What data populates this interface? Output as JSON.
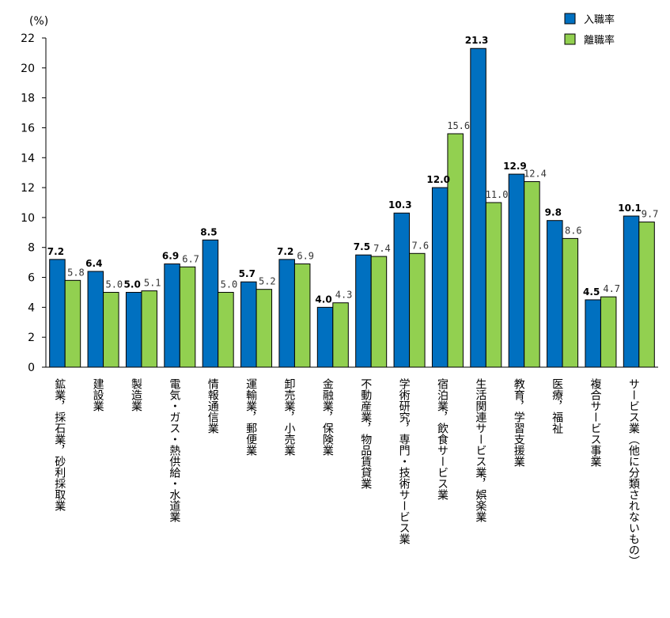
{
  "chart_data": {
    "type": "bar",
    "unit_label": "(%)",
    "ylim": [
      0,
      22
    ],
    "yticks": [
      0,
      2,
      4,
      6,
      8,
      10,
      12,
      14,
      16,
      18,
      20,
      22
    ],
    "legend_position": "top-right",
    "categories": [
      "鉱業，採石業，砂利採取業",
      "建設業",
      "製造業",
      "電気・ガス・熱供給・水道業",
      "情報通信業",
      "運輸業，郵便業",
      "卸売業，小売業",
      "金融業，保険業",
      "不動産業，物品賃貸業",
      "学術研究，専門・技術サービス業",
      "宿泊業，飲食サービス業",
      "生活関連サービス業，娯楽業",
      "教育，学習支援業",
      "医療，福祉",
      "複合サービス事業",
      "サービス業（他に分類されないもの）"
    ],
    "series": [
      {
        "name": "入職率",
        "color": "#0070c0",
        "values": [
          7.2,
          6.4,
          5.0,
          6.9,
          8.5,
          5.7,
          7.2,
          4.0,
          7.5,
          10.3,
          12.0,
          21.3,
          12.9,
          9.8,
          4.5,
          10.1
        ],
        "labels": [
          "7.2",
          "6.4",
          "5.0",
          "6.9",
          "8.5",
          "5.7",
          "7.2",
          "4.0",
          "7.5",
          "10.3",
          "12.0",
          "21.3",
          "12.9",
          "9.8",
          "4.5",
          "10.1"
        ]
      },
      {
        "name": "離職率",
        "color": "#92d050",
        "values": [
          5.8,
          5.0,
          5.1,
          6.7,
          5.0,
          5.2,
          6.9,
          4.3,
          7.4,
          7.6,
          15.6,
          11.0,
          12.4,
          8.6,
          4.7,
          9.7
        ],
        "labels": [
          "5.8",
          "5.0",
          "5.1",
          "6.7",
          "5.0",
          "5.2",
          "6.9",
          "4.3",
          "7.4",
          "7.6",
          "15.6",
          "11.0",
          "12.4",
          "8.6",
          "4.7",
          "9.7"
        ]
      }
    ]
  }
}
